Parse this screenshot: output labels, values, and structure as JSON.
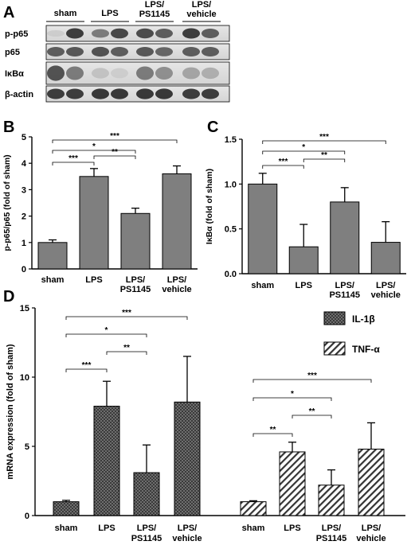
{
  "panels": {
    "A": "A",
    "B": "B",
    "C": "C",
    "D": "D"
  },
  "blot": {
    "groups": [
      "sham",
      "LPS",
      "LPS/\nPS1145",
      "LPS/\nvehicle"
    ],
    "rows": [
      {
        "label": "p-p65",
        "intensity": [
          0.15,
          0.85,
          0.55,
          0.8,
          0.78,
          0.7,
          0.85,
          0.7
        ]
      },
      {
        "label": "p65",
        "intensity": [
          0.7,
          0.72,
          0.75,
          0.7,
          0.72,
          0.65,
          0.7,
          0.7
        ]
      },
      {
        "label": "IκBα",
        "intensity": [
          0.75,
          0.55,
          0.2,
          0.15,
          0.55,
          0.45,
          0.35,
          0.3
        ]
      },
      {
        "label": "β-actin",
        "intensity": [
          0.85,
          0.85,
          0.88,
          0.88,
          0.88,
          0.88,
          0.85,
          0.85
        ]
      }
    ]
  },
  "colors": {
    "bar_fill": "#7f7f7f",
    "axis": "#000000"
  },
  "chart_data": [
    {
      "panel": "B",
      "type": "bar",
      "categories": [
        "sham",
        "LPS",
        "LPS/\nPS1145",
        "LPS/\nvehicle"
      ],
      "values": [
        1.0,
        3.5,
        2.1,
        3.6
      ],
      "errors": [
        0.1,
        0.3,
        0.2,
        0.3
      ],
      "ylabel": "p-p65/p65 (fold of sham)",
      "ylim": [
        0,
        5
      ],
      "yticks": [
        "0",
        "1",
        "2",
        "3",
        "4",
        "5"
      ],
      "annotations": [
        {
          "from": 0,
          "to": 1,
          "label": "***"
        },
        {
          "from": 1,
          "to": 2,
          "label": "**"
        },
        {
          "from": 0,
          "to": 2,
          "label": "*"
        },
        {
          "from": 0,
          "to": 3,
          "label": "***"
        }
      ]
    },
    {
      "panel": "C",
      "type": "bar",
      "categories": [
        "sham",
        "LPS",
        "LPS/\nPS1145",
        "LPS/\nvehicle"
      ],
      "values": [
        1.0,
        0.3,
        0.8,
        0.35
      ],
      "errors": [
        0.12,
        0.25,
        0.16,
        0.23
      ],
      "ylabel": "IκBα (fold of sham)",
      "ylim": [
        0,
        1.5
      ],
      "yticks": [
        "0.0",
        "0.5",
        "1.0",
        "1.5"
      ],
      "annotations": [
        {
          "from": 0,
          "to": 1,
          "label": "***"
        },
        {
          "from": 1,
          "to": 2,
          "label": "**"
        },
        {
          "from": 0,
          "to": 2,
          "label": "*"
        },
        {
          "from": 0,
          "to": 3,
          "label": "***"
        }
      ]
    },
    {
      "panel": "D",
      "type": "bar",
      "ylabel": "mRNA expression (fold of sham)",
      "ylim": [
        0,
        15
      ],
      "yticks": [
        "0",
        "5",
        "10",
        "15"
      ],
      "categories": [
        "sham",
        "LPS",
        "LPS/\nPS1145",
        "LPS/\nvehicle"
      ],
      "series": [
        {
          "name": "IL-1β",
          "pattern": "crosshatch",
          "values": [
            1.0,
            7.9,
            3.1,
            8.2
          ],
          "errors": [
            0.1,
            1.8,
            2.0,
            3.3
          ],
          "annotations": [
            {
              "from": 0,
              "to": 1,
              "label": "***"
            },
            {
              "from": 1,
              "to": 2,
              "label": "**"
            },
            {
              "from": 0,
              "to": 2,
              "label": "*"
            },
            {
              "from": 0,
              "to": 3,
              "label": "***"
            }
          ]
        },
        {
          "name": "TNF-α",
          "pattern": "diagonal",
          "values": [
            1.0,
            4.6,
            2.2,
            4.8
          ],
          "errors": [
            0.07,
            0.7,
            1.1,
            1.9
          ],
          "annotations": [
            {
              "from": 0,
              "to": 1,
              "label": "**"
            },
            {
              "from": 1,
              "to": 2,
              "label": "**"
            },
            {
              "from": 0,
              "to": 2,
              "label": "*"
            },
            {
              "from": 0,
              "to": 3,
              "label": "***"
            }
          ]
        }
      ]
    }
  ]
}
